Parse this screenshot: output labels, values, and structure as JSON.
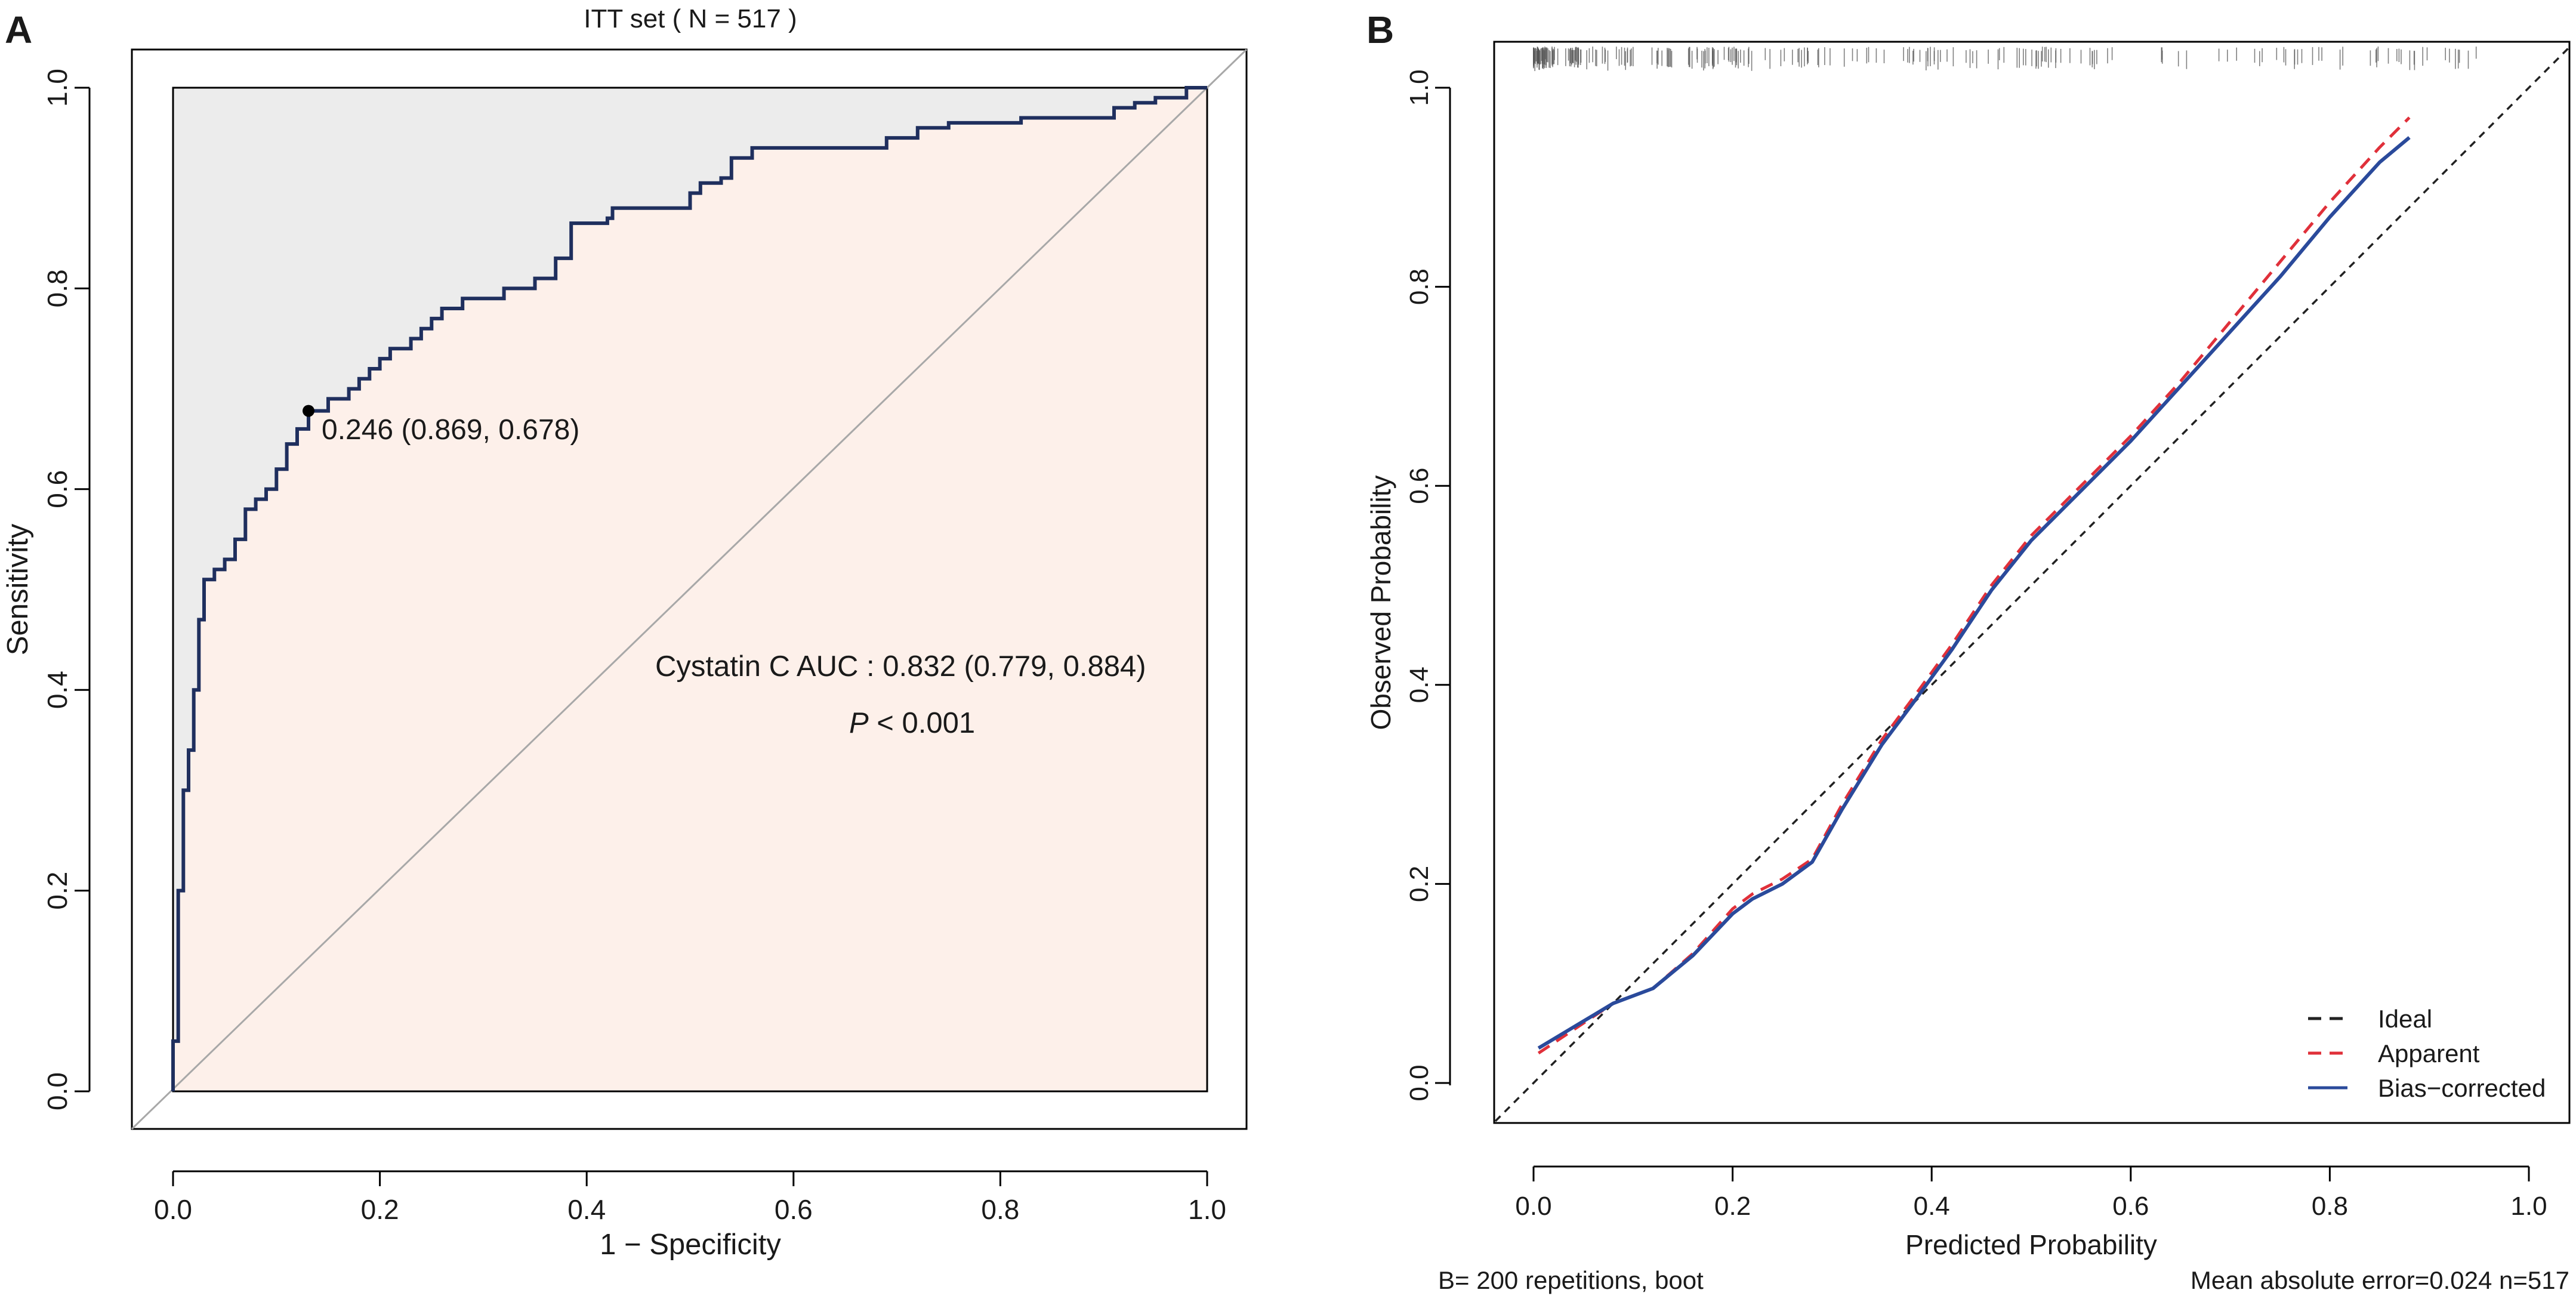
{
  "figure": {
    "panel_a_label": "A",
    "panel_b_label": "B"
  },
  "chart_data": [
    {
      "type": "line",
      "subtype": "roc",
      "title": "ITT set ( N = 517 )",
      "xlabel": "1 − Specificity",
      "ylabel": "Sensitivity",
      "xlim": [
        0,
        1
      ],
      "ylim": [
        0,
        1
      ],
      "x_ticks": [
        "0.0",
        "0.2",
        "0.4",
        "0.6",
        "0.8",
        "1.0"
      ],
      "y_ticks": [
        "0.0",
        "0.2",
        "0.4",
        "0.6",
        "0.8",
        "1.0"
      ],
      "colors": {
        "curve": "#1f2f5e",
        "auc_fill": "#fdf0ea",
        "upper_fill": "#ececec",
        "diagonal": "#a8a8a8"
      },
      "series": [
        {
          "name": "Cystatin C",
          "x": [
            0,
            0,
            0.005,
            0.005,
            0.01,
            0.01,
            0.015,
            0.015,
            0.02,
            0.02,
            0.025,
            0.025,
            0.03,
            0.03,
            0.04,
            0.04,
            0.05,
            0.05,
            0.06,
            0.06,
            0.07,
            0.07,
            0.08,
            0.08,
            0.09,
            0.09,
            0.1,
            0.1,
            0.11,
            0.11,
            0.12,
            0.12,
            0.131,
            0.131,
            0.15,
            0.15,
            0.17,
            0.17,
            0.18,
            0.18,
            0.19,
            0.19,
            0.2,
            0.2,
            0.21,
            0.21,
            0.23,
            0.23,
            0.24,
            0.24,
            0.25,
            0.25,
            0.26,
            0.26,
            0.28,
            0.28,
            0.32,
            0.32,
            0.35,
            0.35,
            0.37,
            0.37,
            0.385,
            0.385,
            0.42,
            0.42,
            0.425,
            0.425,
            0.5,
            0.5,
            0.51,
            0.51,
            0.53,
            0.53,
            0.54,
            0.54,
            0.56,
            0.56,
            0.69,
            0.69,
            0.72,
            0.72,
            0.75,
            0.75,
            0.82,
            0.82,
            0.91,
            0.91,
            0.93,
            0.93,
            0.95,
            0.95,
            0.98,
            0.98,
            1
          ],
          "y": [
            0,
            0.05,
            0.05,
            0.2,
            0.2,
            0.3,
            0.3,
            0.34,
            0.34,
            0.4,
            0.4,
            0.47,
            0.47,
            0.51,
            0.51,
            0.52,
            0.52,
            0.53,
            0.53,
            0.55,
            0.55,
            0.58,
            0.58,
            0.59,
            0.59,
            0.6,
            0.6,
            0.62,
            0.62,
            0.645,
            0.645,
            0.66,
            0.66,
            0.678,
            0.678,
            0.69,
            0.69,
            0.7,
            0.7,
            0.71,
            0.71,
            0.72,
            0.72,
            0.73,
            0.73,
            0.74,
            0.74,
            0.75,
            0.75,
            0.76,
            0.76,
            0.77,
            0.77,
            0.78,
            0.78,
            0.79,
            0.79,
            0.8,
            0.8,
            0.81,
            0.81,
            0.83,
            0.83,
            0.865,
            0.865,
            0.87,
            0.87,
            0.88,
            0.88,
            0.895,
            0.895,
            0.905,
            0.905,
            0.91,
            0.91,
            0.93,
            0.93,
            0.94,
            0.94,
            0.95,
            0.95,
            0.96,
            0.96,
            0.965,
            0.965,
            0.97,
            0.97,
            0.98,
            0.98,
            0.985,
            0.985,
            0.99,
            0.99,
            1,
            1
          ]
        }
      ],
      "cutoff_point": {
        "x": 0.131,
        "y": 0.678,
        "label": "0.246 (0.869, 0.678)"
      },
      "annotations": {
        "auc_text": "Cystatin C AUC : 0.832 (0.779, 0.884)",
        "p_symbol": "P",
        "p_text": " < 0.001"
      }
    },
    {
      "type": "line",
      "subtype": "calibration",
      "xlabel": "Predicted Probability",
      "ylabel": "Observed Probability",
      "xlim": [
        0,
        1
      ],
      "ylim": [
        0,
        1
      ],
      "x_ticks": [
        "0.0",
        "0.2",
        "0.4",
        "0.6",
        "0.8",
        "1.0"
      ],
      "y_ticks": [
        "0.0",
        "0.2",
        "0.4",
        "0.6",
        "0.8",
        "1.0"
      ],
      "series": [
        {
          "name": "Ideal",
          "color": "#222222",
          "dash": "dashed",
          "x": [
            -0.04,
            1.04
          ],
          "y": [
            -0.04,
            1.04
          ]
        },
        {
          "name": "Apparent",
          "color": "#e0303a",
          "dash": "dashed",
          "x": [
            0.005,
            0.05,
            0.08,
            0.12,
            0.16,
            0.2,
            0.22,
            0.25,
            0.28,
            0.31,
            0.35,
            0.38,
            0.42,
            0.46,
            0.5,
            0.55,
            0.6,
            0.65,
            0.7,
            0.75,
            0.8,
            0.85,
            0.88
          ],
          "y": [
            0.03,
            0.06,
            0.08,
            0.095,
            0.13,
            0.175,
            0.19,
            0.205,
            0.225,
            0.28,
            0.345,
            0.385,
            0.44,
            0.5,
            0.55,
            0.6,
            0.65,
            0.705,
            0.765,
            0.825,
            0.885,
            0.94,
            0.97
          ]
        },
        {
          "name": "Bias−corrected",
          "color": "#2a4a9b",
          "dash": "solid",
          "x": [
            0.005,
            0.05,
            0.08,
            0.12,
            0.16,
            0.2,
            0.22,
            0.25,
            0.28,
            0.31,
            0.35,
            0.38,
            0.42,
            0.46,
            0.5,
            0.55,
            0.6,
            0.65,
            0.7,
            0.75,
            0.8,
            0.85,
            0.88
          ],
          "y": [
            0.035,
            0.062,
            0.08,
            0.095,
            0.128,
            0.17,
            0.185,
            0.2,
            0.222,
            0.275,
            0.34,
            0.38,
            0.435,
            0.495,
            0.545,
            0.595,
            0.645,
            0.7,
            0.755,
            0.81,
            0.87,
            0.925,
            0.95
          ]
        }
      ],
      "rug": {
        "x_min": 0.0,
        "x_max": 0.95,
        "color": "#555555"
      },
      "legend_position": "bottom-right",
      "footer_left": "B= 200 repetitions, boot",
      "footer_right": "Mean absolute error=0.024 n=517"
    }
  ]
}
